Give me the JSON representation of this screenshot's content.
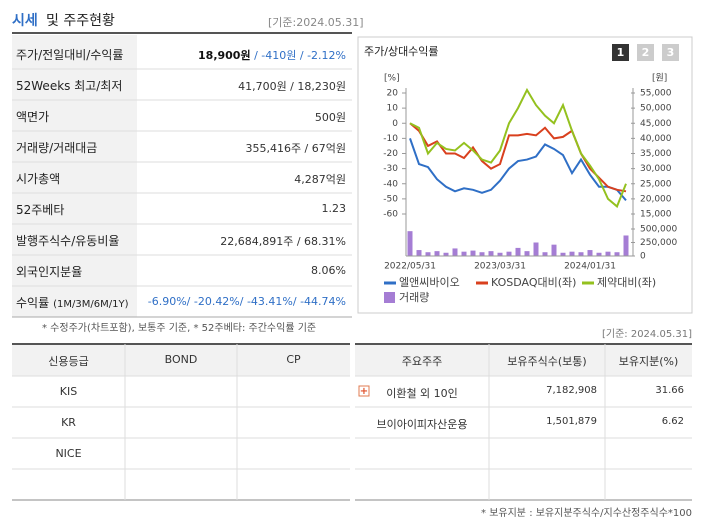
{
  "header": {
    "title_main": "시세",
    "title_rest": "및 주주현황",
    "date": "[기준:2024.05.31]"
  },
  "market_table": {
    "rows": [
      {
        "label": "주가/전일대비/수익률",
        "value_main": "18,900원",
        "value_rest": " / -410원 / -2.12%"
      },
      {
        "label": "52Weeks 최고/최저",
        "value": "41,700원 / 18,230원"
      },
      {
        "label": "액면가",
        "value": "500원"
      },
      {
        "label": "거래량/거래대금",
        "value": "355,416주 / 67억원"
      },
      {
        "label": "시가총액",
        "value": "4,287억원"
      },
      {
        "label": "52주베타",
        "value": "1.23"
      },
      {
        "label": "발행주식수/유동비율",
        "value": "22,684,891주 / 68.31%"
      },
      {
        "label": "외국인지분율",
        "value": "8.06%"
      },
      {
        "label": "수익률",
        "label_small": "(1M/3M/6M/1Y)",
        "value": "-6.90%/ -20.42%/ -43.41%/ -44.74%"
      }
    ]
  },
  "chart_data": {
    "type": "line",
    "title": "주가/상대수익률",
    "buttons": [
      "1",
      "2",
      "3"
    ],
    "ylabel": "[%]",
    "y2label": "[원]",
    "x": [
      "2022/05/31",
      null,
      null,
      null,
      null,
      null,
      null,
      null,
      null,
      null,
      "2023/03/31",
      null,
      null,
      null,
      null,
      null,
      null,
      null,
      null,
      null,
      "2024/01/31",
      null,
      null,
      null,
      null
    ],
    "ylim": [
      -60,
      20
    ],
    "yticks": [
      20,
      10,
      0,
      -10,
      -20,
      -30,
      -40,
      -50,
      -60
    ],
    "y2lim": [
      15000,
      55000
    ],
    "y2ticks": [
      {
        "value": 55000,
        "label": "55,000"
      },
      {
        "value": 50000,
        "label": "50,000"
      },
      {
        "value": 45000,
        "label": "45,000"
      },
      {
        "value": 40000,
        "label": "40,000"
      },
      {
        "value": 35000,
        "label": "35,000"
      },
      {
        "value": 30000,
        "label": "30,000"
      },
      {
        "value": 25000,
        "label": "25,000"
      },
      {
        "value": 20000,
        "label": "20,000"
      },
      {
        "value": 15000,
        "label": "15,000"
      }
    ],
    "series": [
      {
        "name": "엘앤씨바이오",
        "color": "#2f6fc6",
        "values": [
          -10,
          -27,
          -29,
          -37,
          -42,
          -45,
          -43,
          -44,
          -46,
          -44,
          -38,
          -30,
          -25,
          -24,
          -22,
          -14,
          -17,
          -21,
          -33,
          -24,
          -34,
          -42,
          -42,
          -44,
          -51
        ]
      },
      {
        "name": "KOSDAQ대비(좌)",
        "color": "#d9401e",
        "values": [
          0,
          -5,
          -15,
          -12,
          -20,
          -20,
          -23,
          -16,
          -25,
          -30,
          -27,
          -8,
          -8,
          -7,
          -8,
          -3,
          -10,
          -9,
          -5,
          -20,
          -30,
          -36,
          -42,
          -44,
          -45
        ]
      },
      {
        "name": "제약대비(좌)",
        "color": "#94c11f",
        "values": [
          0,
          -3,
          -20,
          -13,
          -17,
          -18,
          -13,
          -18,
          -24,
          -26,
          -18,
          0,
          10,
          22,
          12,
          5,
          0,
          12,
          -5,
          -20,
          -28,
          -37,
          -50,
          -55,
          -40
        ]
      }
    ],
    "volume": {
      "name": "거래량",
      "color": "#a57dd4",
      "ylim": [
        0,
        500000
      ],
      "yticks": [
        {
          "value": 500000,
          "label": "500,000"
        },
        {
          "value": 250000,
          "label": "250,000"
        },
        0
      ],
      "values": [
        460000,
        110000,
        70000,
        90000,
        60000,
        140000,
        80000,
        100000,
        70000,
        90000,
        60000,
        80000,
        150000,
        90000,
        250000,
        70000,
        210000,
        60000,
        80000,
        70000,
        110000,
        60000,
        80000,
        70000,
        380000
      ]
    }
  },
  "notes": {
    "left": "* 수정주가(차트포함), 보통주 기준, * 52주베타: 주간수익률 기준",
    "right": "[기준: 2024.05.31]"
  },
  "credit_table": {
    "headers": [
      "신용등급",
      "BOND",
      "CP"
    ],
    "rows": [
      [
        "KIS"
      ],
      [
        "KR"
      ],
      [
        "NICE"
      ]
    ]
  },
  "holders_table": {
    "headers": [
      "주요주주",
      "보유주식수(보통)",
      "보유지분(%)"
    ],
    "rows": [
      [
        "이환철 외 10인",
        "7,182,908",
        "31.66"
      ],
      [
        "브이아이피자산운용",
        "1,501,879",
        "6.62"
      ]
    ]
  },
  "footnote": "* 보유지분 : 보유지분주식수/지수산정주식수*100"
}
